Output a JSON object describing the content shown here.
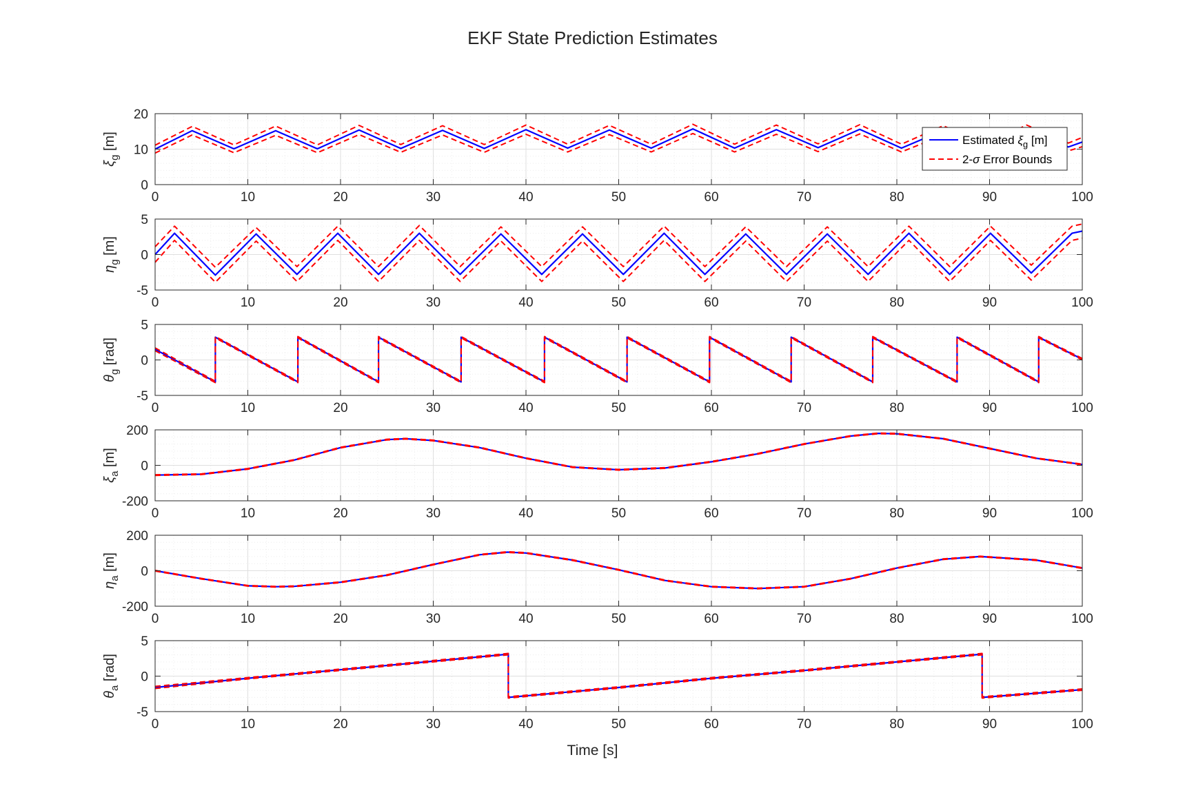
{
  "figure": {
    "title": "EKF State Prediction Estimates",
    "xlabel": "Time [s]",
    "legend": {
      "placement": "top-right of first subplot",
      "entries": [
        {
          "label": "Estimated ",
          "symbol": "ξ",
          "sub": "g",
          "suffix": " [m]",
          "style": "solid",
          "color": "#0000ff"
        },
        {
          "label": "2-",
          "symbol": "σ",
          "suffix": " Error Bounds",
          "style": "dashed",
          "color": "#ff0000"
        }
      ]
    }
  },
  "colors": {
    "estimate": "#0000ff",
    "bounds": "#ff0000",
    "axes": "#262626",
    "grid_major": "#dfdfdf",
    "grid_minor": "#ececec"
  },
  "chart_data": [
    {
      "type": "line",
      "ylabel": {
        "symbol": "ξ",
        "sub": "g",
        "unit": " [m]"
      },
      "xlim": [
        0,
        100
      ],
      "ylim": [
        0,
        20
      ],
      "xticks": [
        0,
        10,
        20,
        30,
        40,
        50,
        60,
        70,
        80,
        90,
        100
      ],
      "yticks": [
        0,
        10,
        20
      ],
      "grid": true,
      "minor_grid": true,
      "series": [
        {
          "style": "solid",
          "color": "#0000ff",
          "x": [
            0,
            4.0,
            8.5,
            13.0,
            17.5,
            22.0,
            26.5,
            31.0,
            35.5,
            40.0,
            44.5,
            49.0,
            53.5,
            58.0,
            62.5,
            67.0,
            71.5,
            76.0,
            80.5,
            85.0,
            89.5,
            94.0,
            98.5,
            100
          ],
          "y": [
            10,
            15.2,
            10.1,
            15.2,
            10.1,
            15.4,
            10.2,
            15.3,
            10.2,
            15.5,
            10.3,
            15.4,
            10.3,
            15.7,
            10.3,
            15.5,
            10.4,
            15.6,
            10.3,
            15.3,
            10.2,
            15.5,
            10.6,
            12
          ]
        },
        {
          "style": "dashed",
          "color": "#ff0000",
          "x": [
            0,
            4.0,
            8.5,
            13.0,
            17.5,
            22.0,
            26.5,
            31.0,
            35.5,
            40.0,
            44.5,
            49.0,
            53.5,
            58.0,
            62.5,
            67.0,
            71.5,
            76.0,
            80.5,
            85.0,
            89.5,
            94.0,
            98.5,
            100
          ],
          "y": [
            11.1,
            16.4,
            11.2,
            16.5,
            11.2,
            16.7,
            11.3,
            16.6,
            11.3,
            16.8,
            11.4,
            16.7,
            11.4,
            17.0,
            11.4,
            16.8,
            11.5,
            16.9,
            11.4,
            16.6,
            11.3,
            16.8,
            11.7,
            13.3
          ]
        },
        {
          "style": "dashed",
          "color": "#ff0000",
          "x": [
            0,
            4.0,
            8.5,
            13.0,
            17.5,
            22.0,
            26.5,
            31.0,
            35.5,
            40.0,
            44.5,
            49.0,
            53.5,
            58.0,
            62.5,
            67.0,
            71.5,
            76.0,
            80.5,
            85.0,
            89.5,
            94.0,
            98.5,
            100
          ],
          "y": [
            8.9,
            14.0,
            9.0,
            13.9,
            9.0,
            14.1,
            9.1,
            14.0,
            9.1,
            14.2,
            9.2,
            14.1,
            9.2,
            14.4,
            9.2,
            14.2,
            9.3,
            14.3,
            9.2,
            14.0,
            9.1,
            14.2,
            9.5,
            10.7
          ]
        }
      ]
    },
    {
      "type": "line",
      "ylabel": {
        "symbol": "η",
        "sub": "g",
        "unit": " [m]"
      },
      "xlim": [
        0,
        100
      ],
      "ylim": [
        -5,
        5
      ],
      "xticks": [
        0,
        10,
        20,
        30,
        40,
        50,
        60,
        70,
        80,
        90,
        100
      ],
      "yticks": [
        -5,
        0,
        5
      ],
      "grid": true,
      "minor_grid": true,
      "series": [
        {
          "style": "solid",
          "color": "#0000ff",
          "x": [
            0,
            2.1,
            6.5,
            10.9,
            15.3,
            19.7,
            24.1,
            28.5,
            32.9,
            37.3,
            41.7,
            46.1,
            50.5,
            54.9,
            59.3,
            63.7,
            68.1,
            72.5,
            76.9,
            81.3,
            85.7,
            90.1,
            94.5,
            98.9,
            100
          ],
          "y": [
            0,
            3.0,
            -2.9,
            2.9,
            -2.8,
            3.0,
            -2.8,
            3.0,
            -2.8,
            2.9,
            -2.8,
            2.9,
            -2.8,
            3.0,
            -2.8,
            2.9,
            -2.8,
            2.9,
            -2.8,
            3.0,
            -2.8,
            3.0,
            -2.6,
            3.0,
            3.3
          ]
        },
        {
          "style": "dashed",
          "color": "#ff0000",
          "x": [
            0,
            2.1,
            6.5,
            10.9,
            15.3,
            19.7,
            24.1,
            28.5,
            32.9,
            37.3,
            41.7,
            46.1,
            50.5,
            54.9,
            59.3,
            63.7,
            68.1,
            72.5,
            76.9,
            81.3,
            85.7,
            90.1,
            94.5,
            98.9,
            100
          ],
          "y": [
            1.1,
            4.0,
            -1.8,
            3.8,
            -1.7,
            4.0,
            -1.7,
            4.1,
            -1.7,
            3.9,
            -1.7,
            3.9,
            -1.7,
            4.0,
            -1.7,
            3.9,
            -1.7,
            3.9,
            -1.7,
            4.0,
            -1.7,
            4.0,
            -1.5,
            4.0,
            4.3
          ]
        },
        {
          "style": "dashed",
          "color": "#ff0000",
          "x": [
            0,
            2.1,
            6.5,
            10.9,
            15.3,
            19.7,
            24.1,
            28.5,
            32.9,
            37.3,
            41.7,
            46.1,
            50.5,
            54.9,
            59.3,
            63.7,
            68.1,
            72.5,
            76.9,
            81.3,
            85.7,
            90.1,
            94.5,
            98.9,
            100
          ],
          "y": [
            -1.1,
            2.0,
            -3.9,
            1.9,
            -3.8,
            2.0,
            -3.8,
            2.0,
            -3.8,
            1.9,
            -3.8,
            1.9,
            -3.8,
            2.0,
            -3.8,
            1.9,
            -3.8,
            1.9,
            -3.8,
            2.0,
            -3.8,
            2.0,
            -3.6,
            2.0,
            2.3
          ]
        }
      ]
    },
    {
      "type": "line",
      "ylabel": {
        "symbol": "θ",
        "sub": "g",
        "unit": " [rad]"
      },
      "xlim": [
        0,
        100
      ],
      "ylim": [
        -5,
        5
      ],
      "xticks": [
        0,
        10,
        20,
        30,
        40,
        50,
        60,
        70,
        80,
        90,
        100
      ],
      "yticks": [
        -5,
        0,
        5
      ],
      "grid": true,
      "minor_grid": true,
      "series": [
        {
          "style": "solid",
          "color": "#0000ff",
          "x": [
            0,
            6.5,
            6.5,
            15.4,
            15.4,
            24.1,
            24.1,
            33.0,
            33.0,
            42.0,
            42.0,
            50.9,
            50.9,
            59.8,
            59.8,
            68.6,
            68.6,
            77.4,
            77.4,
            86.5,
            86.5,
            95.3,
            95.3,
            100
          ],
          "y": [
            1.5,
            -3.1,
            3.2,
            -3.1,
            3.2,
            -3.1,
            3.2,
            -3.1,
            3.2,
            -3.1,
            3.2,
            -3.1,
            3.2,
            -3.1,
            3.2,
            -3.1,
            3.2,
            -3.1,
            3.2,
            -3.1,
            3.2,
            -3.1,
            3.2,
            0.1
          ]
        },
        {
          "style": "dashed",
          "color": "#ff0000",
          "x": [
            0,
            6.5,
            6.5,
            15.4,
            15.4,
            24.1,
            24.1,
            33.0,
            33.0,
            42.0,
            42.0,
            50.9,
            50.9,
            59.8,
            59.8,
            68.6,
            68.6,
            77.4,
            77.4,
            86.5,
            86.5,
            95.3,
            95.3,
            100
          ],
          "y": [
            1.7,
            -3.0,
            3.3,
            -3.0,
            3.3,
            -3.0,
            3.3,
            -3.0,
            3.3,
            -3.0,
            3.3,
            -3.0,
            3.3,
            -3.0,
            3.3,
            -3.0,
            3.3,
            -3.0,
            3.3,
            -3.0,
            3.3,
            -3.0,
            3.3,
            0.2
          ]
        },
        {
          "style": "dashed",
          "color": "#ff0000",
          "x": [
            0,
            6.5,
            6.5,
            15.4,
            15.4,
            24.1,
            24.1,
            33.0,
            33.0,
            42.0,
            42.0,
            50.9,
            50.9,
            59.8,
            59.8,
            68.6,
            68.6,
            77.4,
            77.4,
            86.5,
            86.5,
            95.3,
            95.3,
            100
          ],
          "y": [
            1.3,
            -3.2,
            3.1,
            -3.2,
            3.1,
            -3.2,
            3.1,
            -3.2,
            3.1,
            -3.2,
            3.1,
            -3.2,
            3.1,
            -3.2,
            3.1,
            -3.2,
            3.1,
            -3.2,
            3.1,
            -3.2,
            3.1,
            -3.2,
            3.1,
            0.0
          ]
        }
      ]
    },
    {
      "type": "line",
      "ylabel": {
        "symbol": "ξ",
        "sub": "a",
        "unit": " [m]"
      },
      "xlim": [
        0,
        100
      ],
      "ylim": [
        -200,
        200
      ],
      "xticks": [
        0,
        10,
        20,
        30,
        40,
        50,
        60,
        70,
        80,
        90,
        100
      ],
      "yticks": [
        -200,
        0,
        200
      ],
      "grid": true,
      "minor_grid": true,
      "series": [
        {
          "style": "solid",
          "color": "#0000ff",
          "x": [
            0,
            5,
            10,
            15,
            20,
            25,
            27,
            30,
            35,
            40,
            45,
            50,
            55,
            60,
            65,
            70,
            75,
            78,
            80,
            85,
            90,
            95,
            100
          ],
          "y": [
            -55,
            -50,
            -20,
            30,
            100,
            145,
            150,
            140,
            100,
            40,
            -10,
            -25,
            -15,
            20,
            65,
            120,
            165,
            180,
            178,
            150,
            95,
            40,
            5
          ]
        },
        {
          "style": "dashed",
          "color": "#ff0000",
          "x": [
            0,
            5,
            10,
            15,
            20,
            25,
            27,
            30,
            35,
            40,
            45,
            50,
            55,
            60,
            65,
            70,
            75,
            78,
            80,
            85,
            90,
            95,
            100
          ],
          "y": [
            -53,
            -48,
            -18,
            32,
            102,
            147,
            152,
            142,
            102,
            42,
            -8,
            -23,
            -13,
            22,
            67,
            122,
            167,
            182,
            180,
            152,
            97,
            42,
            7
          ]
        },
        {
          "style": "dashed",
          "color": "#ff0000",
          "x": [
            0,
            5,
            10,
            15,
            20,
            25,
            27,
            30,
            35,
            40,
            45,
            50,
            55,
            60,
            65,
            70,
            75,
            78,
            80,
            85,
            90,
            95,
            100
          ],
          "y": [
            -57,
            -52,
            -22,
            28,
            98,
            143,
            148,
            138,
            98,
            38,
            -12,
            -27,
            -17,
            18,
            63,
            118,
            163,
            178,
            176,
            148,
            93,
            38,
            3
          ]
        }
      ]
    },
    {
      "type": "line",
      "ylabel": {
        "symbol": "η",
        "sub": "a",
        "unit": " [m]"
      },
      "xlim": [
        0,
        100
      ],
      "ylim": [
        -200,
        200
      ],
      "xticks": [
        0,
        10,
        20,
        30,
        40,
        50,
        60,
        70,
        80,
        90,
        100
      ],
      "yticks": [
        -200,
        0,
        200
      ],
      "grid": true,
      "minor_grid": true,
      "series": [
        {
          "style": "solid",
          "color": "#0000ff",
          "x": [
            0,
            5,
            10,
            13,
            15,
            20,
            25,
            30,
            35,
            38,
            40,
            45,
            50,
            55,
            60,
            65,
            70,
            75,
            80,
            85,
            89,
            95,
            100
          ],
          "y": [
            0,
            -45,
            -85,
            -90,
            -88,
            -65,
            -25,
            35,
            90,
            105,
            100,
            60,
            5,
            -55,
            -90,
            -100,
            -90,
            -45,
            15,
            65,
            80,
            60,
            15
          ]
        },
        {
          "style": "dashed",
          "color": "#ff0000",
          "x": [
            0,
            5,
            10,
            13,
            15,
            20,
            25,
            30,
            35,
            38,
            40,
            45,
            50,
            55,
            60,
            65,
            70,
            75,
            80,
            85,
            89,
            95,
            100
          ],
          "y": [
            2,
            -43,
            -83,
            -88,
            -86,
            -63,
            -23,
            37,
            92,
            107,
            102,
            62,
            7,
            -53,
            -88,
            -98,
            -88,
            -43,
            17,
            67,
            82,
            62,
            17
          ]
        },
        {
          "style": "dashed",
          "color": "#ff0000",
          "x": [
            0,
            5,
            10,
            13,
            15,
            20,
            25,
            30,
            35,
            38,
            40,
            45,
            50,
            55,
            60,
            65,
            70,
            75,
            80,
            85,
            89,
            95,
            100
          ],
          "y": [
            -2,
            -47,
            -87,
            -92,
            -90,
            -67,
            -27,
            33,
            88,
            103,
            98,
            58,
            3,
            -57,
            -92,
            -102,
            -92,
            -47,
            13,
            63,
            78,
            58,
            13
          ]
        }
      ]
    },
    {
      "type": "line",
      "ylabel": {
        "symbol": "θ",
        "sub": "a",
        "unit": " [rad]"
      },
      "xlim": [
        0,
        100
      ],
      "ylim": [
        -5,
        5
      ],
      "xticks": [
        0,
        10,
        20,
        30,
        40,
        50,
        60,
        70,
        80,
        90,
        100
      ],
      "yticks": [
        -5,
        0,
        5
      ],
      "grid": true,
      "minor_grid": true,
      "series": [
        {
          "style": "solid",
          "color": "#0000ff",
          "x": [
            0,
            10,
            20,
            30,
            38.1,
            38.1,
            50,
            60,
            70,
            80,
            89.2,
            89.2,
            100
          ],
          "y": [
            -1.6,
            -0.3,
            0.9,
            2.1,
            3.1,
            -3.0,
            -1.6,
            -0.3,
            0.8,
            2.0,
            3.1,
            -3.0,
            -1.9
          ]
        },
        {
          "style": "dashed",
          "color": "#ff0000",
          "x": [
            0,
            10,
            20,
            30,
            38.1,
            38.1,
            50,
            60,
            70,
            80,
            89.2,
            89.2,
            100
          ],
          "y": [
            -1.45,
            -0.2,
            1.0,
            2.2,
            3.2,
            -2.9,
            -1.5,
            -0.2,
            0.9,
            2.1,
            3.2,
            -2.9,
            -1.8
          ]
        },
        {
          "style": "dashed",
          "color": "#ff0000",
          "x": [
            0,
            10,
            20,
            30,
            38.1,
            38.1,
            50,
            60,
            70,
            80,
            89.2,
            89.2,
            100
          ],
          "y": [
            -1.75,
            -0.4,
            0.8,
            2.0,
            3.0,
            -3.1,
            -1.7,
            -0.4,
            0.7,
            1.9,
            3.0,
            -3.1,
            -2.0
          ]
        }
      ]
    }
  ]
}
